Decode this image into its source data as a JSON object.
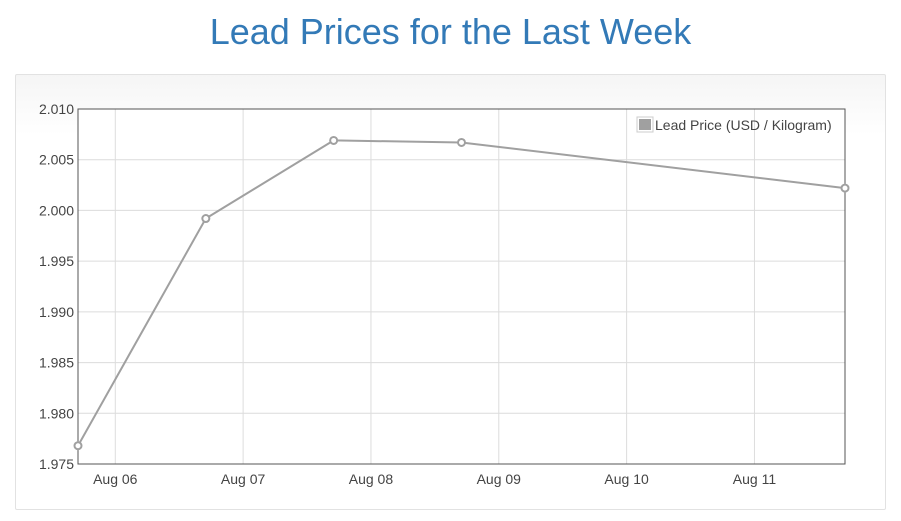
{
  "page": {
    "title": "Lead Prices for the Last Week",
    "title_color": "#337ab7"
  },
  "chart_data": {
    "type": "line",
    "title": "",
    "xlabel": "",
    "ylabel": "",
    "x_ticks": [
      "Aug 06",
      "Aug 07",
      "Aug 08",
      "Aug 09",
      "Aug 10",
      "Aug 11"
    ],
    "y_ticks": [
      "1.975",
      "1.980",
      "1.985",
      "1.990",
      "1.995",
      "2.000",
      "2.005",
      "2.010"
    ],
    "ylim": [
      1.975,
      2.01
    ],
    "xlim": [
      "2023-08-05 17:00",
      "2023-08-11 17:00"
    ],
    "grid": true,
    "legend_position": "top-right",
    "series": [
      {
        "name": "Lead Price (USD / Kilogram)",
        "color": "#a0a0a0",
        "points": [
          {
            "x": "2023-08-05 17:00",
            "y": 1.9768
          },
          {
            "x": "2023-08-06 17:00",
            "y": 1.9992
          },
          {
            "x": "2023-08-07 17:00",
            "y": 2.0069
          },
          {
            "x": "2023-08-08 17:00",
            "y": 2.0067
          },
          {
            "x": "2023-08-11 17:00",
            "y": 2.0022
          }
        ]
      }
    ]
  }
}
